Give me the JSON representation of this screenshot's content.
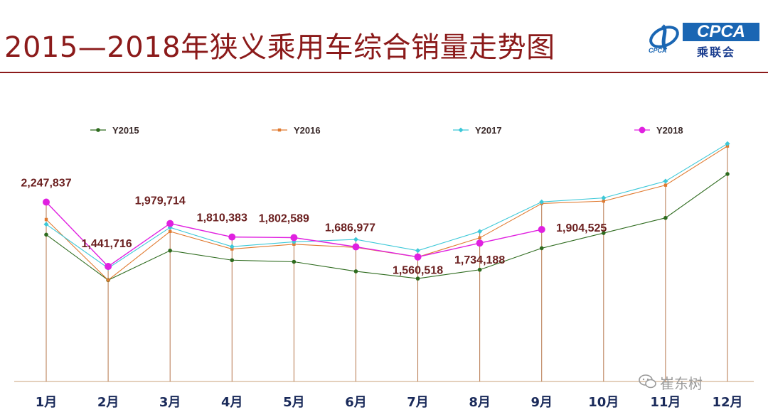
{
  "title": "2015—2018年狭义乘用车综合销量走势图",
  "logo": {
    "main": "CPCA",
    "sub": "乘联会",
    "mark_text": "CPCA"
  },
  "watermark": "崔东树",
  "chart_data": {
    "type": "line",
    "categories": [
      "1月",
      "2月",
      "3月",
      "4月",
      "5月",
      "6月",
      "7月",
      "8月",
      "9月",
      "10月",
      "11月",
      "12月"
    ],
    "ylim": [
      0,
      3000000
    ],
    "grid": false,
    "legend_position": "top",
    "series": [
      {
        "name": "Y2015",
        "color": "#2e6b1e",
        "marker": "circle",
        "values": [
          1840000,
          1270000,
          1640000,
          1520000,
          1500000,
          1380000,
          1290000,
          1400000,
          1670000,
          1860000,
          2050000,
          2600000
        ]
      },
      {
        "name": "Y2016",
        "color": "#e07a30",
        "marker": "square",
        "values": [
          2030000,
          1270000,
          1880000,
          1660000,
          1720000,
          1680000,
          1560000,
          1800000,
          2230000,
          2260000,
          2460000,
          2950000
        ]
      },
      {
        "name": "Y2017",
        "color": "#3cc8d8",
        "marker": "diamond",
        "values": [
          1970000,
          1420000,
          1930000,
          1690000,
          1750000,
          1780000,
          1640000,
          1880000,
          2250000,
          2300000,
          2510000,
          2980000
        ]
      },
      {
        "name": "Y2018",
        "color": "#e020e0",
        "marker": "circle",
        "values": [
          2247837,
          1441716,
          1979714,
          1810383,
          1802589,
          1686977,
          1560518,
          1734188,
          1904525,
          null,
          null,
          null
        ]
      }
    ],
    "data_labels": [
      "2,247,837",
      "1,441,716",
      "1,979,714",
      "1,810,383",
      "1,802,589",
      "1,686,977",
      "1,560,518",
      "1,734,188",
      "1,904,525"
    ]
  }
}
